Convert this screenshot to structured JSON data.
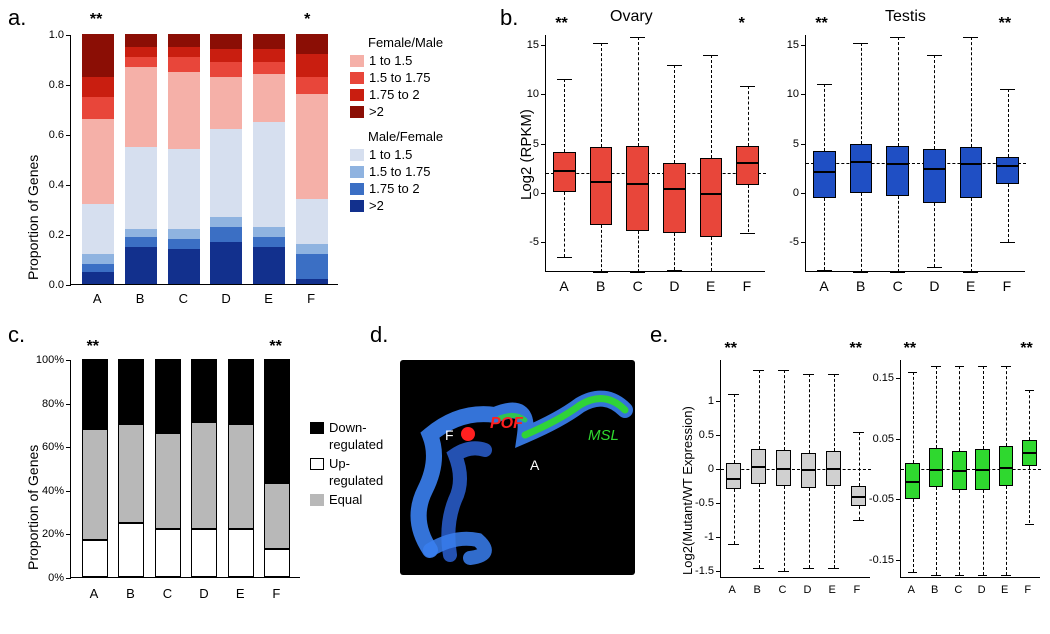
{
  "labels": {
    "a": "a.",
    "b": "b.",
    "c": "c.",
    "d": "d.",
    "e": "e.",
    "propGenes": "Proportion of Genes",
    "log2rpkm": "Log2 (RPKM)",
    "log2mutant": "Log2(Mutant/WT Expression)",
    "ovary": "Ovary",
    "testis": "Testis",
    "cats": [
      "A",
      "B",
      "C",
      "D",
      "E",
      "F"
    ],
    "fm_title": "Female/Male",
    "mf_title": "Male/Female",
    "ratio_bins": [
      "1 to 1.5",
      "1.5 to 1.75",
      "1.75 to 2",
      ">2"
    ],
    "reg": [
      "Down-regulated",
      "Up-regulated",
      "Equal"
    ]
  },
  "colors": {
    "red_shades": [
      "#f5b0a8",
      "#e8463a",
      "#c91e10",
      "#8b0e05"
    ],
    "blue_shades": [
      "#d6dfef",
      "#8fb3e0",
      "#3b6fc4",
      "#12308d"
    ],
    "black": "#000000",
    "white": "#ffffff",
    "grey": "#b8b8b8",
    "orange_box": "#e8463a",
    "blue_box": "#1f4fc4",
    "grey_box": "#d0d0d0",
    "green_box": "#2fd82f"
  },
  "panel_a": {
    "yticks": [
      0.0,
      0.2,
      0.4,
      0.6,
      0.8,
      1.0
    ],
    "stacks": [
      [
        0.05,
        0.03,
        0.04,
        0.2,
        0.34,
        0.09,
        0.08,
        0.17
      ],
      [
        0.15,
        0.04,
        0.03,
        0.33,
        0.32,
        0.04,
        0.04,
        0.05
      ],
      [
        0.14,
        0.04,
        0.04,
        0.32,
        0.31,
        0.06,
        0.04,
        0.05
      ],
      [
        0.17,
        0.06,
        0.04,
        0.35,
        0.21,
        0.06,
        0.05,
        0.06
      ],
      [
        0.15,
        0.04,
        0.04,
        0.42,
        0.19,
        0.05,
        0.05,
        0.06
      ],
      [
        0.02,
        0.1,
        0.04,
        0.18,
        0.42,
        0.07,
        0.09,
        0.08
      ]
    ],
    "sig": {
      "A": "**",
      "F": "*"
    }
  },
  "panel_b": {
    "ovary": {
      "ylim": [
        -8,
        16
      ],
      "yticks": [
        -5,
        0,
        5,
        10,
        15
      ],
      "ref": 2.0,
      "boxes": [
        {
          "lw": -6.5,
          "q1": 0.1,
          "med": 2.3,
          "q3": 4.2,
          "uw": 11.5
        },
        {
          "lw": -8.0,
          "q1": -3.2,
          "med": 1.2,
          "q3": 4.7,
          "uw": 15.2
        },
        {
          "lw": -8.0,
          "q1": -3.8,
          "med": 1.0,
          "q3": 4.8,
          "uw": 15.8
        },
        {
          "lw": -7.8,
          "q1": -4.0,
          "med": 0.5,
          "q3": 3.0,
          "uw": 13.0
        },
        {
          "lw": -7.9,
          "q1": -4.5,
          "med": 0.0,
          "q3": 3.5,
          "uw": 14.0
        },
        {
          "lw": -4.0,
          "q1": 0.8,
          "med": 3.1,
          "q3": 4.8,
          "uw": 10.8
        }
      ],
      "sig": {
        "A": "**",
        "F": "*"
      }
    },
    "testis": {
      "ylim": [
        -8,
        16
      ],
      "yticks": [
        -5,
        0,
        5,
        10,
        15
      ],
      "ref": 3.0,
      "boxes": [
        {
          "lw": -7.8,
          "q1": -0.5,
          "med": 2.2,
          "q3": 4.3,
          "uw": 11.0
        },
        {
          "lw": -8.0,
          "q1": 0.0,
          "med": 3.2,
          "q3": 5.0,
          "uw": 15.2
        },
        {
          "lw": -8.0,
          "q1": -0.3,
          "med": 3.0,
          "q3": 4.8,
          "uw": 15.8
        },
        {
          "lw": -7.5,
          "q1": -1.0,
          "med": 2.5,
          "q3": 4.5,
          "uw": 14.0
        },
        {
          "lw": -8.0,
          "q1": -0.5,
          "med": 3.0,
          "q3": 4.7,
          "uw": 15.8
        },
        {
          "lw": -5.0,
          "q1": 0.9,
          "med": 2.8,
          "q3": 3.6,
          "uw": 10.5
        }
      ],
      "sig": {
        "A": "**",
        "F": "**"
      }
    }
  },
  "panel_c": {
    "yticks": [
      0,
      20,
      40,
      60,
      80,
      100
    ],
    "stacks": [
      {
        "up": 17,
        "equal": 51,
        "down": 32
      },
      {
        "up": 25,
        "equal": 45,
        "down": 30
      },
      {
        "up": 22,
        "equal": 44,
        "down": 34
      },
      {
        "up": 22,
        "equal": 49,
        "down": 29
      },
      {
        "up": 22,
        "equal": 48,
        "down": 30
      },
      {
        "up": 13,
        "equal": 30,
        "down": 57
      }
    ],
    "sig": {
      "A": "**",
      "F": "**"
    }
  },
  "panel_d": {
    "labels": {
      "pof": "POF",
      "msl": "MSL",
      "F": "F",
      "A": "A"
    }
  },
  "panel_e": {
    "left": {
      "ylim": [
        -1.6,
        1.6
      ],
      "yticks": [
        -1.5,
        -1.0,
        -0.5,
        0.0,
        0.5,
        1.0
      ],
      "ref": 0.0,
      "color": "#d0d0d0",
      "boxes": [
        {
          "lw": -1.1,
          "q1": -0.3,
          "med": -0.13,
          "q3": 0.09,
          "uw": 1.1
        },
        {
          "lw": -1.45,
          "q1": -0.22,
          "med": 0.04,
          "q3": 0.3,
          "uw": 1.45
        },
        {
          "lw": -1.5,
          "q1": -0.25,
          "med": 0.01,
          "q3": 0.28,
          "uw": 1.45
        },
        {
          "lw": -1.45,
          "q1": -0.28,
          "med": 0.0,
          "q3": 0.24,
          "uw": 1.4
        },
        {
          "lw": -1.45,
          "q1": -0.25,
          "med": 0.02,
          "q3": 0.27,
          "uw": 1.4
        },
        {
          "lw": -0.75,
          "q1": -0.55,
          "med": -0.4,
          "q3": -0.25,
          "uw": 0.55
        }
      ],
      "sig": {
        "A": "**",
        "F": "**"
      }
    },
    "right": {
      "ylim": [
        -0.18,
        0.18
      ],
      "yticks": [
        -0.15,
        -0.05,
        0.05,
        0.15
      ],
      "ref": 0.0,
      "color": "#2fd82f",
      "boxes": [
        {
          "lw": -0.17,
          "q1": -0.05,
          "med": -0.02,
          "q3": 0.01,
          "uw": 0.16
        },
        {
          "lw": -0.175,
          "q1": -0.03,
          "med": 0.0,
          "q3": 0.035,
          "uw": 0.17
        },
        {
          "lw": -0.175,
          "q1": -0.035,
          "med": -0.002,
          "q3": 0.03,
          "uw": 0.17
        },
        {
          "lw": -0.175,
          "q1": -0.035,
          "med": 0.0,
          "q3": 0.033,
          "uw": 0.17
        },
        {
          "lw": -0.175,
          "q1": -0.028,
          "med": 0.003,
          "q3": 0.038,
          "uw": 0.17
        },
        {
          "lw": -0.09,
          "q1": 0.005,
          "med": 0.028,
          "q3": 0.048,
          "uw": 0.13
        }
      ],
      "sig": {
        "A": "**",
        "F": "**"
      }
    }
  }
}
